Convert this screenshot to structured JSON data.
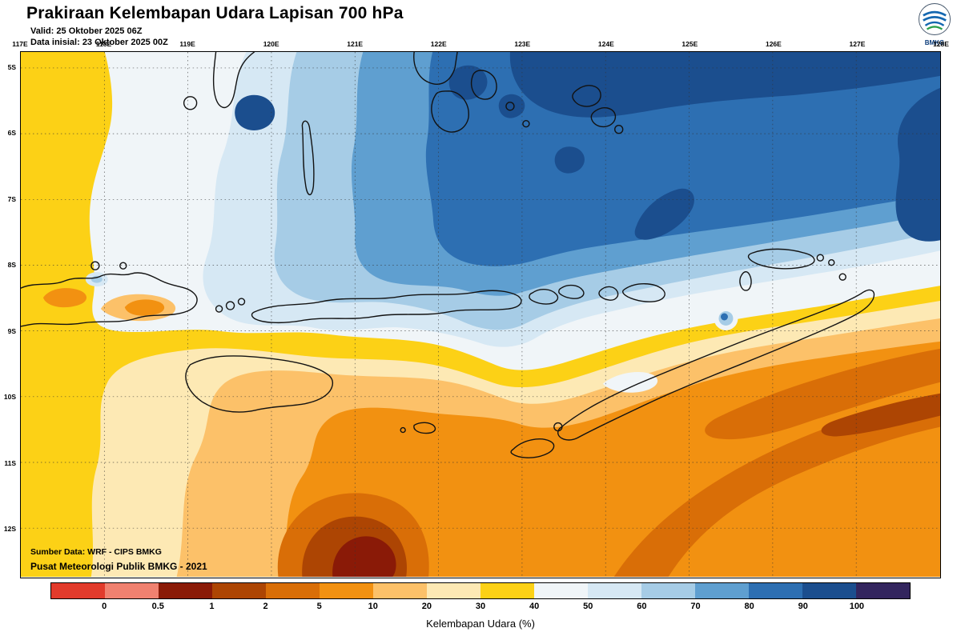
{
  "header": {
    "title": "Prakiraan Kelembapan Udara Lapisan 700 hPa",
    "valid_label": "Valid:",
    "valid_value": "25 Oktober 2025 06Z",
    "init_label": "Data inisial:",
    "init_value": "23 Oktober 2025 00Z"
  },
  "logo": {
    "text": "BMKG"
  },
  "map": {
    "lon_labels": [
      "117E",
      "118E",
      "119E",
      "120E",
      "121E",
      "122E",
      "123E",
      "124E",
      "125E",
      "126E",
      "127E",
      "128E"
    ],
    "lat_labels": [
      "5S",
      "6S",
      "7S",
      "8S",
      "9S",
      "10S",
      "11S",
      "12S"
    ],
    "source_line1": "Sumber Data: WRF - CIPS BMKG",
    "source_line2": "Pusat Meteorologi Publik BMKG - 2021"
  },
  "colorbar": {
    "caption": "Kelembapan Udara (%)",
    "tick_labels": [
      "0",
      "0.5",
      "1",
      "2",
      "5",
      "10",
      "20",
      "30",
      "40",
      "50",
      "60",
      "70",
      "80",
      "90",
      "100"
    ],
    "cell_colors": [
      "#e23b2c",
      "#f08170",
      "#8a1a07",
      "#ad4503",
      "#d96e07",
      "#f29111",
      "#fcc169",
      "#fde9b4",
      "#fcd116",
      "#f0f5f8",
      "#d6e8f4",
      "#a6cce6",
      "#5f9fd0",
      "#2d6fb2",
      "#1b4e8e",
      "#33255e"
    ],
    "units": "%"
  }
}
